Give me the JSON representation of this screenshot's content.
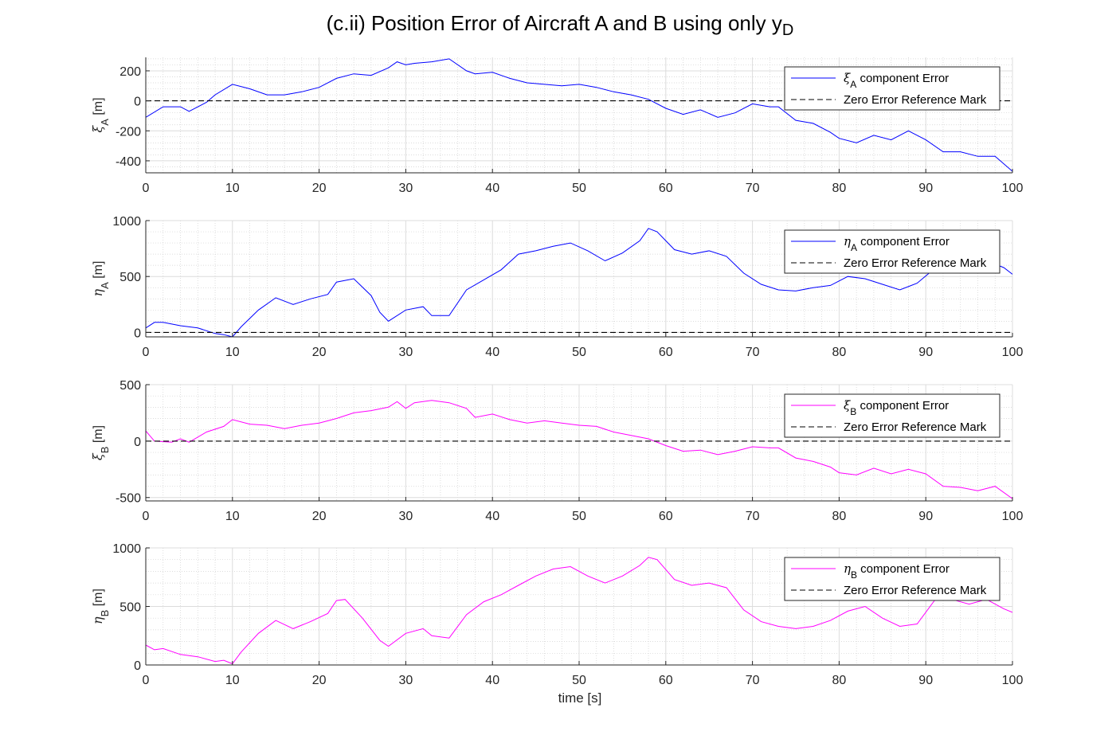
{
  "figure": {
    "title_main": "(c.ii) Position Error of Aircraft A and B using only y",
    "title_sub": "D",
    "xlabel": "time [s]"
  },
  "colors": {
    "blue": "#0000ff",
    "magenta": "#ff00ff",
    "reference": "#000000",
    "grid": "#d0d0d0"
  },
  "chart_data": [
    {
      "type": "line",
      "ylabel_sym": "ξ",
      "ylabel_sub": "A",
      "ylabel_unit": " [m]",
      "xlim": [
        0,
        100
      ],
      "ylim": [
        -480,
        290
      ],
      "xticks": [
        0,
        10,
        20,
        30,
        40,
        50,
        60,
        70,
        80,
        90,
        100
      ],
      "yticks": [
        -400,
        -200,
        0,
        200
      ],
      "grid": true,
      "legend_position": "top-right",
      "series": [
        {
          "name_sym": "ξ",
          "name_sub": "A",
          "name_rest": " component Error",
          "color": "#0000ff",
          "x": [
            0,
            2,
            4,
            5,
            7,
            8,
            10,
            12,
            14,
            16,
            18,
            20,
            22,
            24,
            26,
            28,
            29,
            30,
            31,
            33,
            35,
            37,
            38,
            40,
            42,
            44,
            46,
            48,
            50,
            52,
            54,
            56,
            58,
            60,
            62,
            64,
            66,
            68,
            70,
            72,
            73,
            75,
            77,
            79,
            80,
            82,
            84,
            86,
            88,
            90,
            92,
            94,
            96,
            98,
            100
          ],
          "y": [
            -110,
            -40,
            -40,
            -70,
            -10,
            40,
            110,
            80,
            40,
            40,
            60,
            90,
            150,
            180,
            170,
            220,
            260,
            240,
            250,
            260,
            280,
            200,
            180,
            190,
            150,
            120,
            110,
            100,
            110,
            90,
            60,
            40,
            10,
            -50,
            -90,
            -60,
            -110,
            -80,
            -20,
            -40,
            -40,
            -130,
            -150,
            -210,
            -250,
            -280,
            -230,
            -260,
            -200,
            -260,
            -340,
            -340,
            -370,
            -370,
            -470
          ]
        },
        {
          "name": "Zero Error Reference Mark",
          "color": "#000000",
          "dashed": true,
          "x": [
            0,
            100
          ],
          "y": [
            0,
            0
          ]
        }
      ]
    },
    {
      "type": "line",
      "ylabel_sym": "η",
      "ylabel_sub": "A",
      "ylabel_unit": " [m]",
      "xlim": [
        0,
        100
      ],
      "ylim": [
        -40,
        1000
      ],
      "xticks": [
        0,
        10,
        20,
        30,
        40,
        50,
        60,
        70,
        80,
        90,
        100
      ],
      "yticks": [
        0,
        500,
        1000
      ],
      "grid": true,
      "legend_position": "top-right",
      "series": [
        {
          "name_sym": "η",
          "name_sub": "A",
          "name_rest": " component Error",
          "color": "#0000ff",
          "x": [
            0,
            1,
            2,
            4,
            6,
            8,
            9,
            10,
            11,
            13,
            15,
            17,
            19,
            21,
            22,
            24,
            26,
            27,
            28,
            30,
            32,
            33,
            35,
            37,
            39,
            41,
            43,
            45,
            47,
            49,
            51,
            53,
            55,
            57,
            58,
            59,
            61,
            63,
            65,
            67,
            69,
            71,
            73,
            75,
            77,
            79,
            81,
            83,
            85,
            87,
            89,
            91,
            93,
            95,
            97,
            99,
            100
          ],
          "y": [
            40,
            90,
            90,
            60,
            40,
            -10,
            -20,
            -40,
            50,
            200,
            310,
            250,
            300,
            340,
            450,
            480,
            330,
            180,
            100,
            200,
            230,
            150,
            150,
            380,
            470,
            560,
            700,
            730,
            770,
            800,
            730,
            640,
            710,
            820,
            930,
            900,
            740,
            700,
            730,
            680,
            530,
            430,
            380,
            370,
            400,
            420,
            500,
            480,
            430,
            380,
            440,
            570,
            600,
            610,
            640,
            580,
            520
          ]
        },
        {
          "name": "Zero Error Reference Mark",
          "color": "#000000",
          "dashed": true,
          "x": [
            0,
            100
          ],
          "y": [
            0,
            0
          ]
        }
      ]
    },
    {
      "type": "line",
      "ylabel_sym": "ξ",
      "ylabel_sub": "B",
      "ylabel_unit": " [m]",
      "xlim": [
        0,
        100
      ],
      "ylim": [
        -530,
        500
      ],
      "xticks": [
        0,
        10,
        20,
        30,
        40,
        50,
        60,
        70,
        80,
        90,
        100
      ],
      "yticks": [
        -500,
        0,
        500
      ],
      "grid": true,
      "legend_position": "top-right",
      "series": [
        {
          "name_sym": "ξ",
          "name_sub": "B",
          "name_rest": " component Error",
          "color": "#ff00ff",
          "x": [
            0,
            1,
            3,
            4,
            5,
            7,
            9,
            10,
            12,
            14,
            16,
            18,
            20,
            22,
            24,
            26,
            28,
            29,
            30,
            31,
            33,
            35,
            37,
            38,
            40,
            42,
            44,
            46,
            48,
            50,
            52,
            54,
            56,
            58,
            60,
            62,
            64,
            66,
            68,
            70,
            72,
            73,
            75,
            77,
            79,
            80,
            82,
            84,
            86,
            88,
            90,
            92,
            94,
            96,
            98,
            100
          ],
          "y": [
            90,
            0,
            -10,
            20,
            -10,
            80,
            130,
            190,
            150,
            140,
            110,
            140,
            160,
            200,
            250,
            270,
            300,
            350,
            290,
            340,
            360,
            340,
            290,
            210,
            240,
            190,
            160,
            180,
            160,
            140,
            130,
            80,
            50,
            20,
            -40,
            -90,
            -80,
            -120,
            -90,
            -50,
            -60,
            -60,
            -150,
            -180,
            -230,
            -280,
            -300,
            -240,
            -290,
            -250,
            -290,
            -400,
            -410,
            -440,
            -400,
            -510
          ]
        },
        {
          "name": "Zero Error Reference Mark",
          "color": "#000000",
          "dashed": true,
          "x": [
            0,
            100
          ],
          "y": [
            0,
            0
          ]
        }
      ]
    },
    {
      "type": "line",
      "ylabel_sym": "η",
      "ylabel_sub": "B",
      "ylabel_unit": " [m]",
      "xlim": [
        0,
        100
      ],
      "ylim": [
        0,
        1000
      ],
      "xticks": [
        0,
        10,
        20,
        30,
        40,
        50,
        60,
        70,
        80,
        90,
        100
      ],
      "yticks": [
        0,
        500,
        1000
      ],
      "grid": true,
      "legend_position": "top-right",
      "series": [
        {
          "name_sym": "η",
          "name_sub": "B",
          "name_rest": " component Error",
          "color": "#ff00ff",
          "x": [
            0,
            1,
            2,
            4,
            6,
            8,
            9,
            10,
            11,
            13,
            15,
            17,
            19,
            21,
            22,
            23,
            25,
            27,
            28,
            30,
            32,
            33,
            35,
            37,
            39,
            41,
            43,
            45,
            47,
            49,
            51,
            53,
            55,
            57,
            58,
            59,
            61,
            63,
            65,
            67,
            69,
            71,
            73,
            75,
            77,
            79,
            81,
            83,
            85,
            87,
            89,
            91,
            93,
            95,
            97,
            99,
            100
          ],
          "y": [
            170,
            130,
            140,
            90,
            70,
            30,
            40,
            10,
            110,
            270,
            380,
            310,
            370,
            440,
            550,
            560,
            400,
            210,
            160,
            270,
            310,
            250,
            230,
            430,
            540,
            600,
            680,
            760,
            820,
            840,
            760,
            700,
            760,
            850,
            920,
            900,
            730,
            680,
            700,
            660,
            470,
            370,
            330,
            310,
            330,
            380,
            460,
            500,
            400,
            330,
            350,
            550,
            560,
            520,
            560,
            480,
            450
          ]
        },
        {
          "name": "Zero Error Reference Mark",
          "color": "#000000",
          "dashed": true,
          "x": [
            0,
            100
          ],
          "y": [
            0,
            0
          ]
        }
      ]
    }
  ]
}
